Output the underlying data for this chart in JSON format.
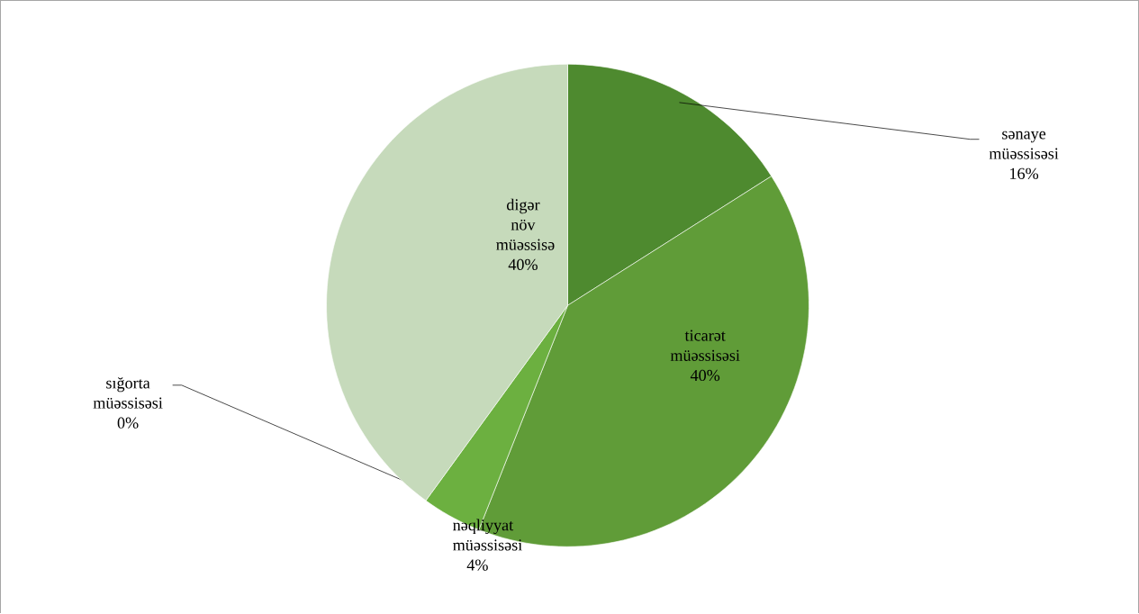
{
  "chart_data": {
    "type": "pie",
    "categories": [
      "sənaye müəssisəsi",
      "ticarət müəssisəsi",
      "nəqliyyat müəssisəsi",
      "sığorta müəssisəsi",
      "digər növ müəssisə"
    ],
    "values": [
      16,
      40,
      4,
      0,
      40
    ],
    "value_labels": [
      "16%",
      "40%",
      "4%",
      "0%",
      "40%"
    ],
    "colors": [
      "#4e8a2f",
      "#609c38",
      "#6cb040",
      "#7ab04d",
      "#c6dabb"
    ]
  }
}
